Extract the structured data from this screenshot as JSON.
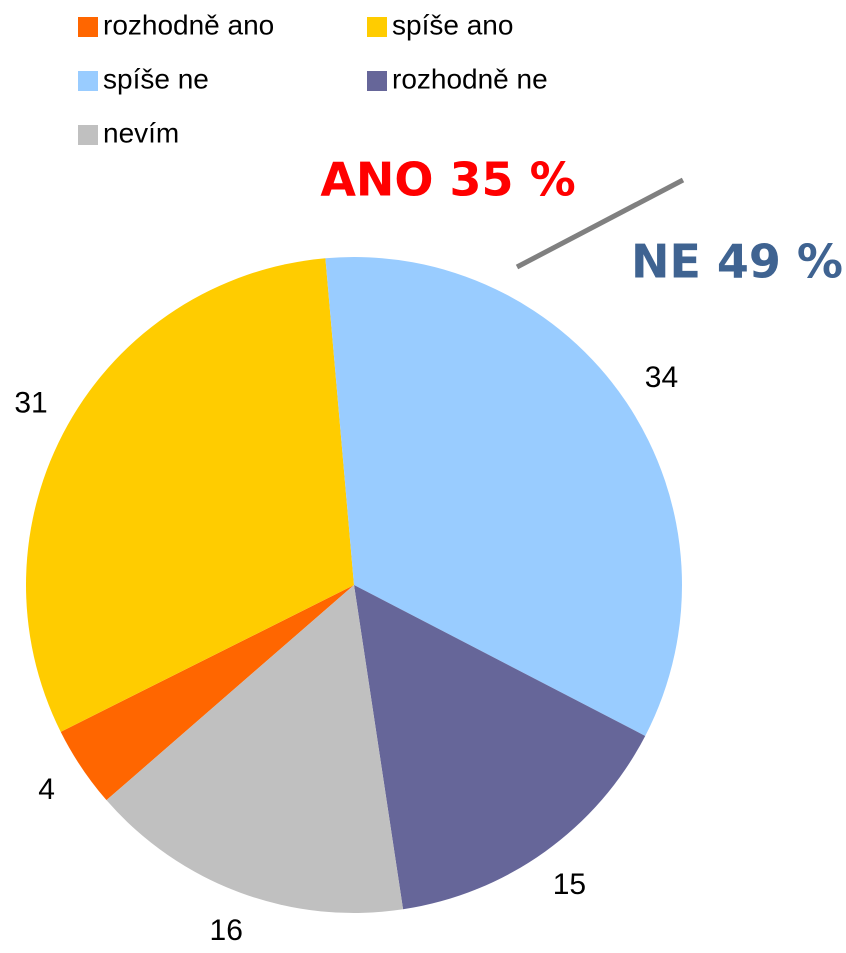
{
  "chart_data": {
    "type": "pie",
    "categories": [
      "rozhodně ano",
      "spíše ano",
      "spíše ne",
      "rozhodně ne",
      "nevím"
    ],
    "values": [
      4,
      31,
      34,
      15,
      16
    ],
    "colors": [
      "#ff6600",
      "#ffcc00",
      "#99ccff",
      "#666699",
      "#c0c0c0"
    ],
    "legend": "top-left",
    "annotations": [
      {
        "text": "ANO 35 %",
        "color": "#ff0000"
      },
      {
        "text": "NE 49 %",
        "color": "#3f6391"
      }
    ]
  }
}
